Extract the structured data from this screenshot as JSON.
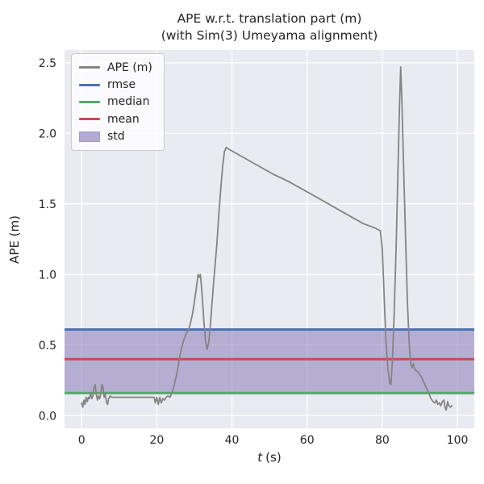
{
  "title": {
    "line1": "APE w.r.t. translation part (m)",
    "line2": "(with Sim(3) Umeyama alignment)"
  },
  "axes": {
    "xlabel": "t (s)",
    "xlabel_var": "t",
    "xlabel_unit": "(s)",
    "ylabel": "APE (m)",
    "x_tick_labels": [
      "0",
      "20",
      "40",
      "60",
      "80",
      "100"
    ],
    "y_tick_labels": [
      "0.0",
      "0.5",
      "1.0",
      "1.5",
      "2.0",
      "2.5"
    ]
  },
  "legend": {
    "items": [
      {
        "label": "APE (m)",
        "color": "#848484",
        "type": "line"
      },
      {
        "label": "rmse",
        "color": "#4C72B0",
        "type": "line"
      },
      {
        "label": "median",
        "color": "#55A868",
        "type": "line"
      },
      {
        "label": "mean",
        "color": "#C44E52",
        "type": "line"
      },
      {
        "label": "std",
        "color": "#B3ABD3",
        "type": "patch"
      }
    ],
    "position": "upper left"
  },
  "colors": {
    "figure_bg": "#ffffff",
    "axes_bg": "#EAEAF2",
    "grid": "#ffffff",
    "text": "#262626",
    "ape": "#848484",
    "rmse": "#4C72B0",
    "median": "#55A868",
    "mean": "#C44E52",
    "std": "#8172B2"
  },
  "chart_data": {
    "type": "line",
    "title": "APE w.r.t. translation part (m)\n(with Sim(3) Umeyama alignment)",
    "xlabel": "t (s)",
    "ylabel": "APE (m)",
    "xlim": [
      -4.55,
      104.5
    ],
    "ylim": [
      -0.09,
      2.59
    ],
    "x_ticks": [
      0,
      20,
      40,
      60,
      80,
      100
    ],
    "y_ticks": [
      0.0,
      0.5,
      1.0,
      1.5,
      2.0,
      2.5
    ],
    "grid": true,
    "legend_position": "upper left",
    "stats": {
      "rmse": 0.61,
      "mean": 0.4,
      "median": 0.16,
      "std_band": [
        0.16,
        0.61
      ]
    },
    "series": [
      {
        "name": "APE (m)",
        "points": [
          [
            0,
            0.09
          ],
          [
            0.3,
            0.06
          ],
          [
            0.6,
            0.11
          ],
          [
            0.9,
            0.08
          ],
          [
            1.2,
            0.13
          ],
          [
            1.5,
            0.1
          ],
          [
            1.8,
            0.13
          ],
          [
            2.1,
            0.12
          ],
          [
            2.4,
            0.16
          ],
          [
            2.7,
            0.12
          ],
          [
            3,
            0.14
          ],
          [
            3.3,
            0.2
          ],
          [
            3.6,
            0.22
          ],
          [
            3.9,
            0.15
          ],
          [
            4.2,
            0.11
          ],
          [
            4.5,
            0.14
          ],
          [
            4.8,
            0.12
          ],
          [
            5.1,
            0.16
          ],
          [
            5.4,
            0.22
          ],
          [
            5.7,
            0.2
          ],
          [
            6,
            0.13
          ],
          [
            6.3,
            0.15
          ],
          [
            6.6,
            0.1
          ],
          [
            6.9,
            0.08
          ],
          [
            7.2,
            0.12
          ],
          [
            7.6,
            0.14
          ],
          [
            8,
            0.13
          ],
          [
            9,
            0.13
          ],
          [
            10,
            0.13
          ],
          [
            12,
            0.13
          ],
          [
            14,
            0.13
          ],
          [
            16,
            0.13
          ],
          [
            18,
            0.13
          ],
          [
            19.3,
            0.13
          ],
          [
            19.6,
            0.09
          ],
          [
            20,
            0.13
          ],
          [
            20.4,
            0.08
          ],
          [
            20.8,
            0.13
          ],
          [
            21.2,
            0.09
          ],
          [
            21.6,
            0.12
          ],
          [
            22,
            0.11
          ],
          [
            22.5,
            0.13
          ],
          [
            23,
            0.14
          ],
          [
            23.5,
            0.13
          ],
          [
            24,
            0.16
          ],
          [
            24.5,
            0.2
          ],
          [
            25,
            0.26
          ],
          [
            25.5,
            0.32
          ],
          [
            26,
            0.4
          ],
          [
            26.5,
            0.47
          ],
          [
            27,
            0.52
          ],
          [
            27.5,
            0.56
          ],
          [
            28,
            0.59
          ],
          [
            28.5,
            0.61
          ],
          [
            29,
            0.66
          ],
          [
            29.5,
            0.72
          ],
          [
            30,
            0.8
          ],
          [
            30.5,
            0.9
          ],
          [
            31,
            1.0
          ],
          [
            31.3,
            0.98
          ],
          [
            31.6,
            1.0
          ],
          [
            32,
            0.88
          ],
          [
            32.5,
            0.68
          ],
          [
            33,
            0.52
          ],
          [
            33.4,
            0.47
          ],
          [
            33.8,
            0.52
          ],
          [
            34.2,
            0.62
          ],
          [
            35,
            0.9
          ],
          [
            36,
            1.22
          ],
          [
            36.5,
            1.42
          ],
          [
            37,
            1.6
          ],
          [
            37.5,
            1.76
          ],
          [
            38,
            1.87
          ],
          [
            38.5,
            1.9
          ],
          [
            39,
            1.89
          ],
          [
            43,
            1.83
          ],
          [
            47,
            1.77
          ],
          [
            51,
            1.71
          ],
          [
            55,
            1.66
          ],
          [
            59,
            1.6
          ],
          [
            63,
            1.54
          ],
          [
            67,
            1.48
          ],
          [
            71,
            1.42
          ],
          [
            75,
            1.36
          ],
          [
            78,
            1.33
          ],
          [
            79.5,
            1.31
          ],
          [
            80,
            1.18
          ],
          [
            80.5,
            0.85
          ],
          [
            81,
            0.52
          ],
          [
            81.5,
            0.33
          ],
          [
            82,
            0.23
          ],
          [
            82.3,
            0.22
          ],
          [
            82.7,
            0.38
          ],
          [
            83.2,
            0.75
          ],
          [
            83.7,
            1.2
          ],
          [
            84.2,
            1.75
          ],
          [
            84.6,
            2.2
          ],
          [
            84.9,
            2.47
          ],
          [
            85.2,
            2.25
          ],
          [
            85.7,
            1.75
          ],
          [
            86.2,
            1.25
          ],
          [
            86.7,
            0.8
          ],
          [
            87.2,
            0.5
          ],
          [
            87.6,
            0.36
          ],
          [
            88,
            0.34
          ],
          [
            88.3,
            0.37
          ],
          [
            88.6,
            0.33
          ],
          [
            89,
            0.32
          ],
          [
            89.5,
            0.31
          ],
          [
            90,
            0.29
          ],
          [
            90.5,
            0.27
          ],
          [
            91,
            0.24
          ],
          [
            91.5,
            0.21
          ],
          [
            92,
            0.18
          ],
          [
            92.5,
            0.15
          ],
          [
            93,
            0.12
          ],
          [
            93.5,
            0.1
          ],
          [
            94,
            0.09
          ],
          [
            94.4,
            0.11
          ],
          [
            94.8,
            0.08
          ],
          [
            95.2,
            0.09
          ],
          [
            95.6,
            0.07
          ],
          [
            96,
            0.1
          ],
          [
            96.4,
            0.11
          ],
          [
            96.7,
            0.06
          ],
          [
            97,
            0.04
          ],
          [
            97.4,
            0.1
          ],
          [
            97.7,
            0.07
          ],
          [
            98.2,
            0.06
          ],
          [
            98.5,
            0.07
          ]
        ]
      }
    ]
  }
}
